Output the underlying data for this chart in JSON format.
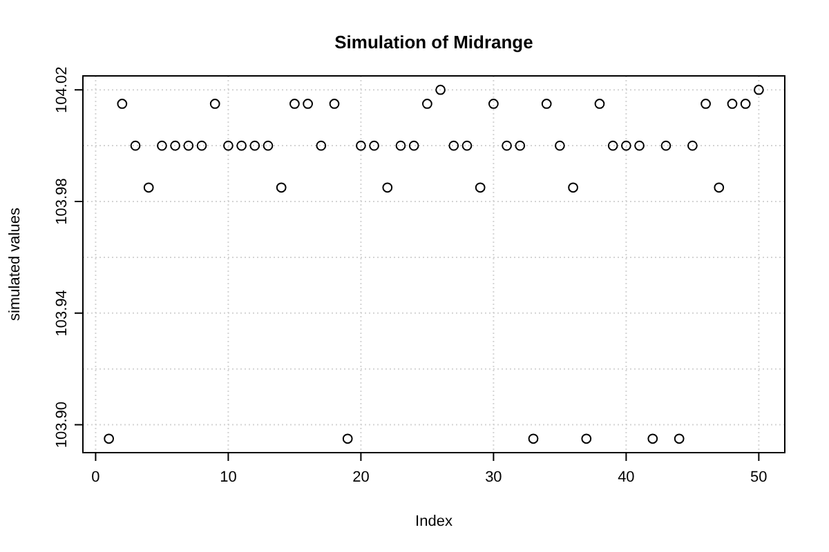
{
  "chart_data": {
    "type": "scatter",
    "title": "Simulation of Midrange",
    "xlabel": "Index",
    "ylabel": "simulated values",
    "x": [
      1,
      2,
      3,
      4,
      5,
      6,
      7,
      8,
      9,
      10,
      11,
      12,
      13,
      14,
      15,
      16,
      17,
      18,
      19,
      20,
      21,
      22,
      23,
      24,
      25,
      26,
      27,
      28,
      29,
      30,
      31,
      32,
      33,
      34,
      35,
      36,
      37,
      38,
      39,
      40,
      41,
      42,
      43,
      44,
      45,
      46,
      47,
      48,
      49,
      50
    ],
    "series": [
      {
        "color": "#000000",
        "values": [
          103.895,
          104.015,
          104.0,
          103.985,
          104.0,
          104.0,
          104.0,
          104.0,
          104.015,
          104.0,
          104.0,
          104.0,
          104.0,
          103.985,
          104.015,
          104.015,
          104.0,
          104.015,
          103.895,
          104.0,
          104.0,
          103.985,
          104.0,
          104.0,
          104.015,
          104.02,
          104.0,
          104.0,
          103.985,
          104.015,
          104.0,
          104.0,
          103.895,
          104.015,
          104.0,
          103.985,
          103.895,
          104.015,
          104.0,
          104.0,
          104.0,
          103.895,
          104.0,
          103.895,
          104.0,
          104.015,
          103.985,
          104.015,
          104.015,
          104.02
        ]
      }
    ],
    "xlim": [
      -0.96,
      51.96
    ],
    "xticks": [
      0,
      10,
      20,
      30,
      40,
      50
    ],
    "ylim": [
      103.89,
      104.025
    ],
    "yticks": [
      {
        "value": 103.9,
        "label": "103.90"
      },
      {
        "value": 103.92,
        "label": null
      },
      {
        "value": 103.94,
        "label": "103.94"
      },
      {
        "value": 103.96,
        "label": null
      },
      {
        "value": 103.98,
        "label": "103.98"
      },
      {
        "value": 104.0,
        "label": null
      },
      {
        "value": 104.02,
        "label": "104.02"
      }
    ],
    "grid": true,
    "marker": "circle"
  }
}
